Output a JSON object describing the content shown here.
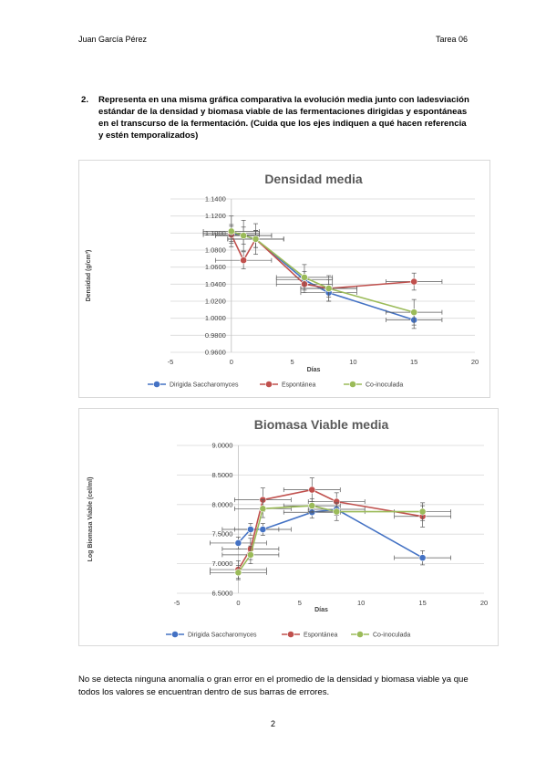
{
  "header": {
    "author": "Juan García Pérez",
    "task": "Tarea 06"
  },
  "question": {
    "number": "2.",
    "text": "Representa en una misma gráfica comparativa la evolución media junto con ladesviación estándar de la densidad y biomasa viable de las fermentaciones dirigidas y espontáneas en el transcurso de la fermentación. (Cuida que los ejes indiquen a qué hacen referencia y estén temporalizados)"
  },
  "conclusion": "No se detecta ninguna anomalía o gran error en el promedio de la densidad y biomasa viable ya que todos los valores se encuentran dentro de sus barras de errores.",
  "page_number": "2",
  "colors": {
    "dirigida": "#4472c4",
    "espontanea": "#c0504d",
    "coinoculada": "#9bbb59",
    "title": "#595959",
    "grid": "#d9d9d9"
  },
  "chart_data": [
    {
      "type": "line",
      "title": "Densidad media",
      "xlabel": "Días",
      "ylabel": "Densidad (g/cm³)",
      "xlim": [
        -5,
        20
      ],
      "ylim": [
        0.96,
        1.14
      ],
      "xticks": [
        -5,
        0,
        5,
        10,
        15,
        20
      ],
      "yticks": [
        "0.9600",
        "0.9800",
        "1.0000",
        "1.0200",
        "1.0400",
        "1.0600",
        "1.0800",
        "1.1000",
        "1.1200",
        "1.1400"
      ],
      "grid": true,
      "legend": "bottom",
      "series": [
        {
          "name": "Dirigida Saccharomyces",
          "x": [
            0,
            1,
            2,
            6,
            8,
            15
          ],
          "y": [
            1.1,
            1.097,
            1.093,
            1.045,
            1.03,
            0.998
          ],
          "yerr": [
            0.01,
            0.01,
            0.01,
            0.01,
            0.01,
            0.01
          ],
          "xerr": [
            2.3,
            2.3,
            2.3,
            2.3,
            2.3,
            2.3
          ]
        },
        {
          "name": "Espontánea",
          "x": [
            0,
            1,
            2,
            6,
            8,
            15
          ],
          "y": [
            1.098,
            1.068,
            1.093,
            1.04,
            1.035,
            1.043
          ],
          "yerr": [
            0.01,
            0.01,
            0.01,
            0.01,
            0.01,
            0.01
          ],
          "xerr": [
            2.3,
            2.3,
            2.3,
            2.3,
            2.3,
            2.3
          ]
        },
        {
          "name": "Co-inoculada",
          "x": [
            0,
            1,
            2,
            6,
            8,
            15
          ],
          "y": [
            1.102,
            1.097,
            1.093,
            1.048,
            1.035,
            1.007
          ],
          "yerr": [
            0.018,
            0.018,
            0.018,
            0.015,
            0.015,
            0.015
          ],
          "xerr": [
            2.3,
            2.3,
            2.3,
            2.3,
            2.3,
            2.3
          ]
        }
      ]
    },
    {
      "type": "line",
      "title": "Biomasa Viable media",
      "xlabel": "Días",
      "ylabel": "Log Biomasa Viable (cel/ml)",
      "xlim": [
        -5,
        20
      ],
      "ylim": [
        6.5,
        9.0
      ],
      "xticks": [
        -5,
        0,
        5,
        10,
        15,
        20
      ],
      "yticks": [
        "6.5000",
        "7.0000",
        "7.5000",
        "8.0000",
        "8.5000",
        "9.0000"
      ],
      "grid": true,
      "legend": "bottom",
      "series": [
        {
          "name": "Dirigida Saccharomyces",
          "x": [
            0,
            1,
            2,
            6,
            8,
            15
          ],
          "y": [
            7.35,
            7.58,
            7.58,
            7.87,
            7.92,
            7.1
          ],
          "yerr": [
            0.1,
            0.1,
            0.1,
            0.1,
            0.1,
            0.12
          ],
          "xerr": [
            2.3,
            2.3,
            2.3,
            2.3,
            2.3,
            2.3
          ]
        },
        {
          "name": "Espontánea",
          "x": [
            0,
            1,
            2,
            6,
            8,
            15
          ],
          "y": [
            6.9,
            7.25,
            8.08,
            8.25,
            8.05,
            7.8
          ],
          "yerr": [
            0.15,
            0.18,
            0.2,
            0.2,
            0.15,
            0.18
          ],
          "xerr": [
            2.3,
            2.3,
            2.3,
            2.3,
            2.3,
            2.3
          ]
        },
        {
          "name": "Co-inoculada",
          "x": [
            0,
            1,
            2,
            6,
            8,
            15
          ],
          "y": [
            6.85,
            7.15,
            7.93,
            7.98,
            7.88,
            7.88
          ],
          "yerr": [
            0.12,
            0.15,
            0.15,
            0.12,
            0.15,
            0.15
          ],
          "xerr": [
            2.3,
            2.3,
            2.3,
            2.3,
            2.3,
            2.3
          ]
        }
      ]
    }
  ]
}
